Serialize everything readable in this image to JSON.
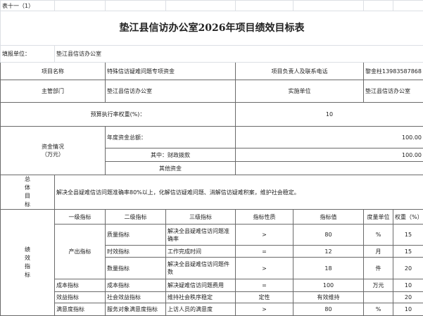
{
  "table_no": "表十一（1）",
  "title": "垫江县信访办公室2026年项目绩效目标表",
  "unit_label": "填报单位：",
  "unit_value": "垫江县信访办公室",
  "project_name_label": "项目名称",
  "project_name": "特殊信访疑难问题专项资金",
  "leader_label": "项目负责人及联系电话",
  "leader_value": "黎金柱13983587868",
  "dept_label": "主管部门",
  "dept_value": "垫江县信访办公室",
  "impl_label": "实施单位",
  "impl_value": "垫江县信访办公室",
  "budget_weight_label": "预算执行率权重(%)：",
  "budget_weight_value": "10",
  "funds_label": "资金情况",
  "funds_unit": "（万元）",
  "annual_total_label": "年度资金总额：",
  "annual_total_value": "100.00",
  "fiscal_label": "其中：财政拨款",
  "fiscal_value": "100.00",
  "other_label": "其他资金",
  "other_value": "",
  "goal_label": "总体目标",
  "goal_text": "解决全县疑难信访问题准确率80%以上，化解信访疑难问题、消解信访疑难积案，维护社会稳定。",
  "perf_label": "绩效指标",
  "headers": [
    "一级指标",
    "二级指标",
    "三级指标",
    "指标性质",
    "指标值",
    "度量单位",
    "权重（%）"
  ],
  "rows": [
    {
      "l1": "产出指标",
      "l2": "质量指标",
      "l3": "解决全县疑难信访问题准确率",
      "nature": ">",
      "value": "80",
      "unit": "%",
      "weight": "15"
    },
    {
      "l1": "产出指标",
      "l2": "时效指标",
      "l3": "工作完成时间",
      "nature": "=",
      "value": "12",
      "unit": "月",
      "weight": "15"
    },
    {
      "l1": "产出指标",
      "l2": "数量指标",
      "l3": "解决全县疑难信访问题件数",
      "nature": ">",
      "value": "18",
      "unit": "件",
      "weight": "20"
    },
    {
      "l1": "成本指标",
      "l2": "成本指标",
      "l3": "解决疑难信访问题费用",
      "nature": "=",
      "value": "100",
      "unit": "万元",
      "weight": "10"
    },
    {
      "l1": "效益指标",
      "l2": "社会效益指标",
      "l3": "维持社会秩序稳定",
      "nature": "定性",
      "value": "有效维持",
      "unit": "",
      "weight": "20"
    },
    {
      "l1": "满意度指标",
      "l2": "服务对象满意度指标",
      "l3": "上访人员的满意度",
      "nature": ">",
      "value": "80",
      "unit": "%",
      "weight": "10"
    }
  ]
}
